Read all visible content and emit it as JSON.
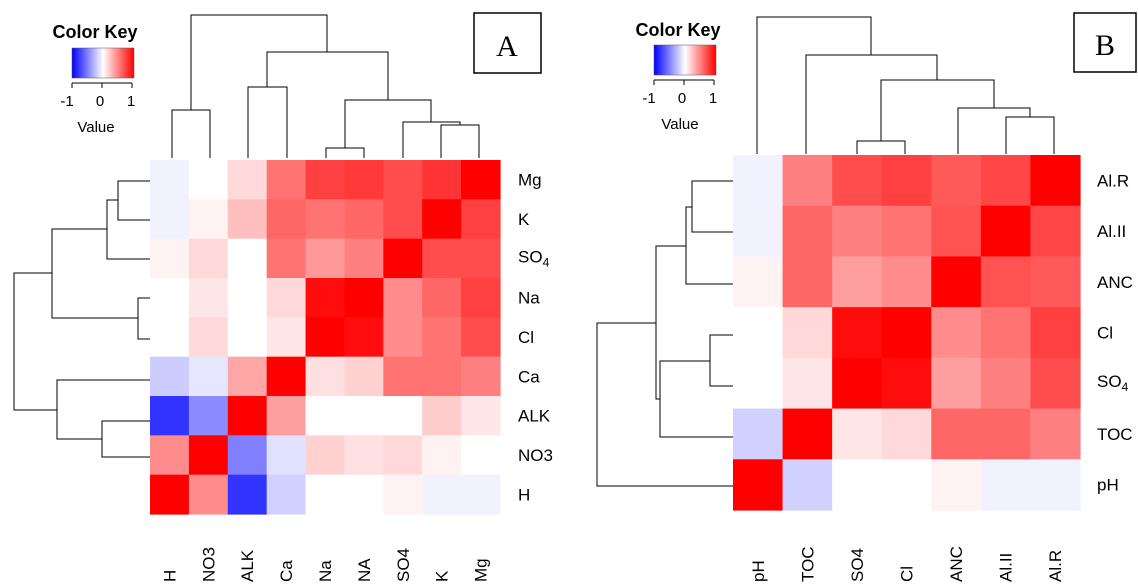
{
  "color_key": {
    "title": "Color Key",
    "ticks": [
      "-1",
      "0",
      "1"
    ],
    "label": "Value",
    "low_color": "#0000ff",
    "mid_color": "#ffffff",
    "high_color": "#ff0000"
  },
  "chart_data": [
    {
      "type": "heatmap",
      "panel_label": "A",
      "row_labels": [
        "Mg",
        "K",
        "SO4",
        "Na",
        "Cl",
        "Ca",
        "ALK",
        "NO3",
        "H"
      ],
      "col_labels": [
        "H",
        "NO3",
        "ALK",
        "Ca",
        "Na",
        "NA",
        "SO4",
        "K",
        "Mg"
      ],
      "value_range": [
        -1,
        1
      ],
      "values": [
        [
          -0.05,
          0.0,
          0.15,
          0.55,
          0.75,
          0.78,
          0.7,
          0.8,
          1.0
        ],
        [
          -0.05,
          0.05,
          0.25,
          0.6,
          0.55,
          0.6,
          0.7,
          1.0,
          0.75
        ],
        [
          0.05,
          0.15,
          0.0,
          0.55,
          0.4,
          0.5,
          1.0,
          0.7,
          0.7
        ],
        [
          0.0,
          0.1,
          0.0,
          0.15,
          0.95,
          1.0,
          0.45,
          0.6,
          0.75
        ],
        [
          0.0,
          0.15,
          0.0,
          0.1,
          1.0,
          0.95,
          0.45,
          0.55,
          0.7
        ],
        [
          -0.2,
          -0.1,
          0.35,
          1.0,
          0.12,
          0.18,
          0.55,
          0.55,
          0.5
        ],
        [
          -0.8,
          -0.45,
          1.0,
          0.38,
          0.0,
          0.0,
          0.0,
          0.2,
          0.1
        ],
        [
          0.45,
          1.0,
          -0.5,
          -0.12,
          0.18,
          0.12,
          0.15,
          0.05,
          0.0
        ],
        [
          1.0,
          0.45,
          -0.8,
          -0.18,
          0.0,
          0.0,
          0.05,
          -0.05,
          -0.05
        ]
      ]
    },
    {
      "type": "heatmap",
      "panel_label": "B",
      "row_labels": [
        "Al.R",
        "Al.II",
        "ANC",
        "Cl",
        "SO4",
        "TOC",
        "pH"
      ],
      "col_labels": [
        "pH",
        "TOC",
        "SO4",
        "Cl",
        "ANC",
        "Al.II",
        "Al.R"
      ],
      "value_range": [
        -1,
        1
      ],
      "values": [
        [
          -0.05,
          0.5,
          0.7,
          0.75,
          0.65,
          0.72,
          1.0
        ],
        [
          -0.05,
          0.6,
          0.5,
          0.55,
          0.68,
          1.0,
          0.72
        ],
        [
          0.05,
          0.6,
          0.38,
          0.45,
          1.0,
          0.68,
          0.65
        ],
        [
          0.0,
          0.15,
          0.95,
          1.0,
          0.45,
          0.55,
          0.75
        ],
        [
          0.0,
          0.1,
          1.0,
          0.95,
          0.38,
          0.5,
          0.7
        ],
        [
          -0.18,
          1.0,
          0.1,
          0.15,
          0.6,
          0.6,
          0.5
        ],
        [
          1.0,
          -0.18,
          0.0,
          0.0,
          0.05,
          -0.05,
          -0.05
        ]
      ]
    }
  ]
}
